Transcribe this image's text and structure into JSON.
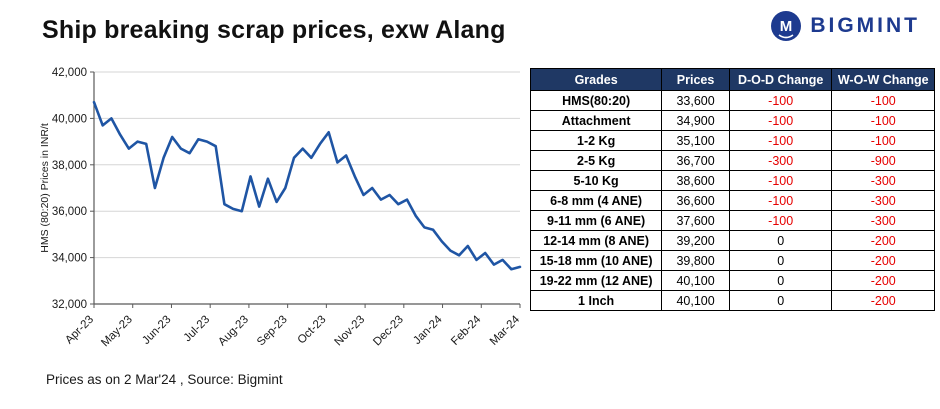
{
  "header": {
    "title": "Ship breaking scrap prices, exw Alang",
    "logo_text": "BIGMINT"
  },
  "table": {
    "columns": [
      "Grades",
      "Prices",
      "D-O-D Change",
      "W-O-W Change"
    ],
    "rows": [
      {
        "grade": "HMS(80:20)",
        "price": "33,600",
        "dod": "-100",
        "wow": "-100"
      },
      {
        "grade": "Attachment",
        "price": "34,900",
        "dod": "-100",
        "wow": "-100"
      },
      {
        "grade": "1-2 Kg",
        "price": "35,100",
        "dod": "-100",
        "wow": "-100"
      },
      {
        "grade": "2-5 Kg",
        "price": "36,700",
        "dod": "-300",
        "wow": "-900"
      },
      {
        "grade": "5-10 Kg",
        "price": "38,600",
        "dod": "-100",
        "wow": "-300"
      },
      {
        "grade": "6-8 mm (4 ANE)",
        "price": "36,600",
        "dod": "-100",
        "wow": "-300"
      },
      {
        "grade": "9-11 mm (6 ANE)",
        "price": "37,600",
        "dod": "-100",
        "wow": "-300"
      },
      {
        "grade": "12-14 mm (8 ANE)",
        "price": "39,200",
        "dod": "0",
        "wow": "-200"
      },
      {
        "grade": "15-18 mm (10 ANE)",
        "price": "39,800",
        "dod": "0",
        "wow": "-200"
      },
      {
        "grade": "19-22 mm (12 ANE)",
        "price": "40,100",
        "dod": "0",
        "wow": "-200"
      },
      {
        "grade": "1 Inch",
        "price": "40,100",
        "dod": "0",
        "wow": "-200"
      }
    ]
  },
  "footer": {
    "note": "Prices as on 2 Mar'24 , Source: Bigmint"
  },
  "colors": {
    "accent_navy": "#1f3864",
    "negative_red": "#e60000",
    "line_blue": "#1f55a4",
    "logo_blue": "#1d3a8f",
    "grid_gray": "#d6d6d6",
    "axis_gray": "#595959"
  },
  "chart_data": {
    "type": "line",
    "title": "",
    "xlabel": "",
    "ylabel": "HMS (80:20) Prices in INR/t",
    "ylim": [
      32000,
      42000
    ],
    "ytick_step": 2000,
    "grid": true,
    "legend": "none",
    "x_tick_labels": [
      "Apr-23",
      "May-23",
      "Jun-23",
      "Jul-23",
      "Aug-23",
      "Sep-23",
      "Oct-23",
      "Nov-23",
      "Dec-23",
      "Jan-24",
      "Feb-24",
      "Mar-24"
    ],
    "series": [
      {
        "name": "HMS (80:20) exw Alang",
        "values": [
          40700,
          39700,
          40000,
          39300,
          38700,
          39000,
          38900,
          37000,
          38300,
          39200,
          38700,
          38500,
          39100,
          39000,
          38800,
          36300,
          36100,
          36000,
          37500,
          36200,
          37400,
          36400,
          37000,
          38300,
          38700,
          38300,
          38900,
          39400,
          38100,
          38400,
          37500,
          36700,
          37000,
          36500,
          36700,
          36300,
          36500,
          35800,
          35300,
          35200,
          34700,
          34300,
          34100,
          34500,
          33900,
          34200,
          33700,
          33900,
          33500,
          33600
        ]
      }
    ]
  }
}
